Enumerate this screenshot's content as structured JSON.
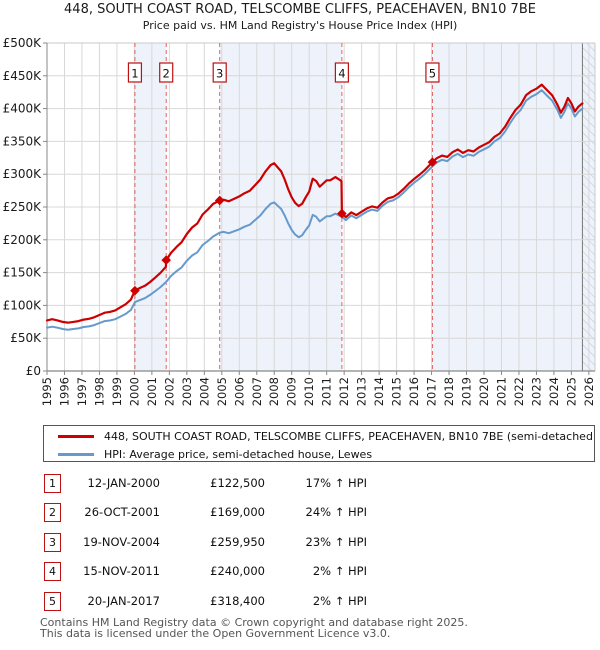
{
  "header": {
    "title": "448, SOUTH COAST ROAD, TELSCOMBE CLIFFS, PEACEHAVEN, BN10 7BE",
    "subtitle": "Price paid vs. HM Land Registry's House Price Index (HPI)"
  },
  "footer": {
    "line1": "Contains HM Land Registry data © Crown copyright and database right 2025.",
    "line2": "This data is licensed under the Open Government Licence v3.0."
  },
  "chart_data": {
    "type": "line",
    "units": "GBP thousands",
    "xlim": [
      1995,
      2026.35
    ],
    "ylim_k": [
      0,
      500
    ],
    "grid": true,
    "x_ticks": [
      1995,
      1996,
      1997,
      1998,
      1999,
      2000,
      2001,
      2002,
      2003,
      2004,
      2005,
      2006,
      2007,
      2008,
      2009,
      2010,
      2011,
      2012,
      2013,
      2014,
      2015,
      2016,
      2017,
      2018,
      2019,
      2020,
      2021,
      2022,
      2023,
      2024,
      2025,
      2026
    ],
    "y_ticks": [
      {
        "v": 0,
        "label": "£0"
      },
      {
        "v": 50,
        "label": "£50K"
      },
      {
        "v": 100,
        "label": "£100K"
      },
      {
        "v": 150,
        "label": "£150K"
      },
      {
        "v": 200,
        "label": "£200K"
      },
      {
        "v": 250,
        "label": "£250K"
      },
      {
        "v": 300,
        "label": "£300K"
      },
      {
        "v": 350,
        "label": "£350K"
      },
      {
        "v": 400,
        "label": "£400K"
      },
      {
        "v": 450,
        "label": "£450K"
      },
      {
        "v": 500,
        "label": "£500K"
      }
    ],
    "colors": {
      "red": "#cc0000",
      "blue": "#6699cc",
      "band": "#eef3fb",
      "grid": "#d8d8d8",
      "dashed": "#e46262",
      "axis": "#888888",
      "frame": "#c8c8c8",
      "hatch": "#c2c8d4",
      "box_border": "#bb1111",
      "end_line": "#777777"
    },
    "bands": [
      [
        2000.03,
        2001.82
      ],
      [
        2004.88,
        2011.87
      ],
      [
        2017.05,
        2026.35
      ]
    ],
    "hatch_from": 2025.63,
    "data_end_line": 2025.63,
    "legend_position": "bottom",
    "sales": [
      {
        "n": "1",
        "date": "12-JAN-2000",
        "price": "£122,500",
        "delta": "17% ↑ HPI",
        "year": 2000.03,
        "value_k": 122.5
      },
      {
        "n": "2",
        "date": "26-OCT-2001",
        "price": "£169,000",
        "delta": "24% ↑ HPI",
        "year": 2001.82,
        "value_k": 169
      },
      {
        "n": "3",
        "date": "19-NOV-2004",
        "price": "£259,950",
        "delta": "23% ↑ HPI",
        "year": 2004.88,
        "value_k": 259.95
      },
      {
        "n": "4",
        "date": "15-NOV-2011",
        "price": "£240,000",
        "delta": "2% ↑ HPI",
        "year": 2011.87,
        "value_k": 240
      },
      {
        "n": "5",
        "date": "20-JAN-2017",
        "price": "£318,400",
        "delta": "2% ↑ HPI",
        "year": 2017.05,
        "value_k": 318.4
      }
    ],
    "series": [
      {
        "name": "448, SOUTH COAST ROAD, TELSCOMBE CLIFFS, PEACEHAVEN, BN10 7BE (semi-detached house",
        "color": "#cc0000",
        "points": [
          [
            1995.0,
            77.2
          ],
          [
            1995.3,
            79
          ],
          [
            1995.6,
            77.2
          ],
          [
            1995.9,
            74.9
          ],
          [
            1996.2,
            73.7
          ],
          [
            1996.5,
            74.9
          ],
          [
            1996.8,
            76.1
          ],
          [
            1997.1,
            78.4
          ],
          [
            1997.4,
            79.6
          ],
          [
            1997.7,
            81.9
          ],
          [
            1998.0,
            85.4
          ],
          [
            1998.3,
            88.9
          ],
          [
            1998.6,
            90.1
          ],
          [
            1998.9,
            92.4
          ],
          [
            1999.2,
            97.1
          ],
          [
            1999.5,
            101.8
          ],
          [
            1999.8,
            108.8
          ],
          [
            2000.03,
            122.5
          ],
          [
            2000.3,
            126.4
          ],
          [
            2000.6,
            129.9
          ],
          [
            2000.9,
            135.7
          ],
          [
            2001.2,
            142.7
          ],
          [
            2001.5,
            149.8
          ],
          [
            2001.8,
            158.8
          ],
          [
            2001.82,
            169
          ],
          [
            2002.1,
            180.2
          ],
          [
            2002.4,
            188.9
          ],
          [
            2002.7,
            196.3
          ],
          [
            2003.0,
            208.8
          ],
          [
            2003.3,
            218.7
          ],
          [
            2003.6,
            224.9
          ],
          [
            2003.9,
            238.6
          ],
          [
            2004.2,
            246
          ],
          [
            2004.5,
            254.7
          ],
          [
            2004.88,
            259.95
          ],
          [
            2005.1,
            261.1
          ],
          [
            2005.4,
            258.7
          ],
          [
            2005.7,
            262.4
          ],
          [
            2006.0,
            266.1
          ],
          [
            2006.3,
            271
          ],
          [
            2006.6,
            274.7
          ],
          [
            2006.9,
            283.3
          ],
          [
            2007.2,
            291.9
          ],
          [
            2007.5,
            304.3
          ],
          [
            2007.8,
            314.1
          ],
          [
            2008.0,
            316.6
          ],
          [
            2008.2,
            310.4
          ],
          [
            2008.4,
            304.3
          ],
          [
            2008.6,
            291.9
          ],
          [
            2008.8,
            277.2
          ],
          [
            2009.0,
            264.8
          ],
          [
            2009.2,
            256.2
          ],
          [
            2009.4,
            251.3
          ],
          [
            2009.6,
            255
          ],
          [
            2009.8,
            264.8
          ],
          [
            2010.0,
            273.5
          ],
          [
            2010.2,
            293.2
          ],
          [
            2010.4,
            289.5
          ],
          [
            2010.6,
            280.9
          ],
          [
            2010.8,
            285.8
          ],
          [
            2011.0,
            290.7
          ],
          [
            2011.2,
            290.7
          ],
          [
            2011.5,
            295.6
          ],
          [
            2011.85,
            289.5
          ],
          [
            2011.87,
            240
          ],
          [
            2012.1,
            234.6
          ],
          [
            2012.4,
            241.7
          ],
          [
            2012.7,
            237.7
          ],
          [
            2013.0,
            242.8
          ],
          [
            2013.3,
            247.9
          ],
          [
            2013.6,
            250.9
          ],
          [
            2013.9,
            248.9
          ],
          [
            2014.2,
            257
          ],
          [
            2014.5,
            263.2
          ],
          [
            2014.8,
            265.2
          ],
          [
            2015.1,
            270.3
          ],
          [
            2015.4,
            277.4
          ],
          [
            2015.7,
            285.6
          ],
          [
            2016.0,
            292.7
          ],
          [
            2016.3,
            298.9
          ],
          [
            2016.6,
            306
          ],
          [
            2016.9,
            314.2
          ],
          [
            2017.05,
            318.4
          ],
          [
            2017.3,
            324.4
          ],
          [
            2017.6,
            328.4
          ],
          [
            2017.9,
            326.4
          ],
          [
            2018.2,
            333.5
          ],
          [
            2018.5,
            337.6
          ],
          [
            2018.8,
            332.5
          ],
          [
            2019.1,
            336.6
          ],
          [
            2019.4,
            334.6
          ],
          [
            2019.7,
            340.7
          ],
          [
            2020.0,
            344.8
          ],
          [
            2020.3,
            348.8
          ],
          [
            2020.6,
            357
          ],
          [
            2020.9,
            362.1
          ],
          [
            2021.2,
            372.3
          ],
          [
            2021.5,
            385.6
          ],
          [
            2021.8,
            397.8
          ],
          [
            2022.1,
            406
          ],
          [
            2022.4,
            420.2
          ],
          [
            2022.7,
            426.4
          ],
          [
            2023.0,
            430.4
          ],
          [
            2023.3,
            436.6
          ],
          [
            2023.6,
            428.4
          ],
          [
            2023.9,
            420.2
          ],
          [
            2024.2,
            406
          ],
          [
            2024.4,
            393.7
          ],
          [
            2024.6,
            402.9
          ],
          [
            2024.8,
            416.2
          ],
          [
            2025.0,
            408
          ],
          [
            2025.2,
            395.8
          ],
          [
            2025.4,
            402.9
          ],
          [
            2025.63,
            408
          ]
        ]
      },
      {
        "name": "HPI: Average price, semi-detached house, Lewes",
        "color": "#6699cc",
        "points": [
          [
            1995.0,
            66
          ],
          [
            1995.3,
            67.5
          ],
          [
            1995.6,
            66
          ],
          [
            1995.9,
            64
          ],
          [
            1996.2,
            63
          ],
          [
            1996.5,
            64
          ],
          [
            1996.8,
            65
          ],
          [
            1997.1,
            67
          ],
          [
            1997.4,
            68
          ],
          [
            1997.7,
            70
          ],
          [
            1998.0,
            73
          ],
          [
            1998.3,
            76
          ],
          [
            1998.6,
            77
          ],
          [
            1998.9,
            79
          ],
          [
            1999.2,
            83
          ],
          [
            1999.5,
            87
          ],
          [
            1999.8,
            93
          ],
          [
            2000.03,
            105
          ],
          [
            2000.3,
            108
          ],
          [
            2000.6,
            111
          ],
          [
            2000.9,
            116
          ],
          [
            2001.2,
            122
          ],
          [
            2001.5,
            128
          ],
          [
            2001.82,
            136
          ],
          [
            2002.1,
            145
          ],
          [
            2002.4,
            152
          ],
          [
            2002.7,
            158
          ],
          [
            2003.0,
            168
          ],
          [
            2003.3,
            176
          ],
          [
            2003.6,
            181
          ],
          [
            2003.9,
            192
          ],
          [
            2004.2,
            198
          ],
          [
            2004.5,
            205
          ],
          [
            2004.88,
            211
          ],
          [
            2005.1,
            212
          ],
          [
            2005.4,
            210
          ],
          [
            2005.7,
            213
          ],
          [
            2006.0,
            216
          ],
          [
            2006.3,
            220
          ],
          [
            2006.6,
            223
          ],
          [
            2006.9,
            230
          ],
          [
            2007.2,
            237
          ],
          [
            2007.5,
            247
          ],
          [
            2007.8,
            255
          ],
          [
            2008.0,
            257
          ],
          [
            2008.2,
            252
          ],
          [
            2008.4,
            247
          ],
          [
            2008.6,
            237
          ],
          [
            2008.8,
            225
          ],
          [
            2009.0,
            215
          ],
          [
            2009.2,
            208
          ],
          [
            2009.4,
            204
          ],
          [
            2009.6,
            207
          ],
          [
            2009.8,
            215
          ],
          [
            2010.0,
            222
          ],
          [
            2010.2,
            238
          ],
          [
            2010.4,
            235
          ],
          [
            2010.6,
            228
          ],
          [
            2010.8,
            232
          ],
          [
            2011.0,
            236
          ],
          [
            2011.2,
            236
          ],
          [
            2011.5,
            240
          ],
          [
            2011.87,
            235
          ],
          [
            2012.1,
            230
          ],
          [
            2012.4,
            237
          ],
          [
            2012.7,
            233
          ],
          [
            2013.0,
            238
          ],
          [
            2013.3,
            243
          ],
          [
            2013.6,
            246
          ],
          [
            2013.9,
            244
          ],
          [
            2014.2,
            252
          ],
          [
            2014.5,
            258
          ],
          [
            2014.8,
            260
          ],
          [
            2015.1,
            265
          ],
          [
            2015.4,
            272
          ],
          [
            2015.7,
            280
          ],
          [
            2016.0,
            287
          ],
          [
            2016.3,
            293
          ],
          [
            2016.6,
            300
          ],
          [
            2016.9,
            308
          ],
          [
            2017.05,
            312
          ],
          [
            2017.3,
            318
          ],
          [
            2017.6,
            322
          ],
          [
            2017.9,
            320
          ],
          [
            2018.2,
            327
          ],
          [
            2018.5,
            331
          ],
          [
            2018.8,
            326
          ],
          [
            2019.1,
            330
          ],
          [
            2019.4,
            328
          ],
          [
            2019.7,
            334
          ],
          [
            2020.0,
            338
          ],
          [
            2020.3,
            342
          ],
          [
            2020.6,
            350
          ],
          [
            2020.9,
            355
          ],
          [
            2021.2,
            365
          ],
          [
            2021.5,
            378
          ],
          [
            2021.8,
            390
          ],
          [
            2022.1,
            398
          ],
          [
            2022.4,
            412
          ],
          [
            2022.7,
            418
          ],
          [
            2023.0,
            422
          ],
          [
            2023.3,
            428
          ],
          [
            2023.6,
            420
          ],
          [
            2023.9,
            412
          ],
          [
            2024.2,
            398
          ],
          [
            2024.4,
            386
          ],
          [
            2024.6,
            395
          ],
          [
            2024.8,
            408
          ],
          [
            2025.0,
            400
          ],
          [
            2025.2,
            388
          ],
          [
            2025.4,
            395
          ],
          [
            2025.63,
            400
          ]
        ]
      }
    ]
  }
}
